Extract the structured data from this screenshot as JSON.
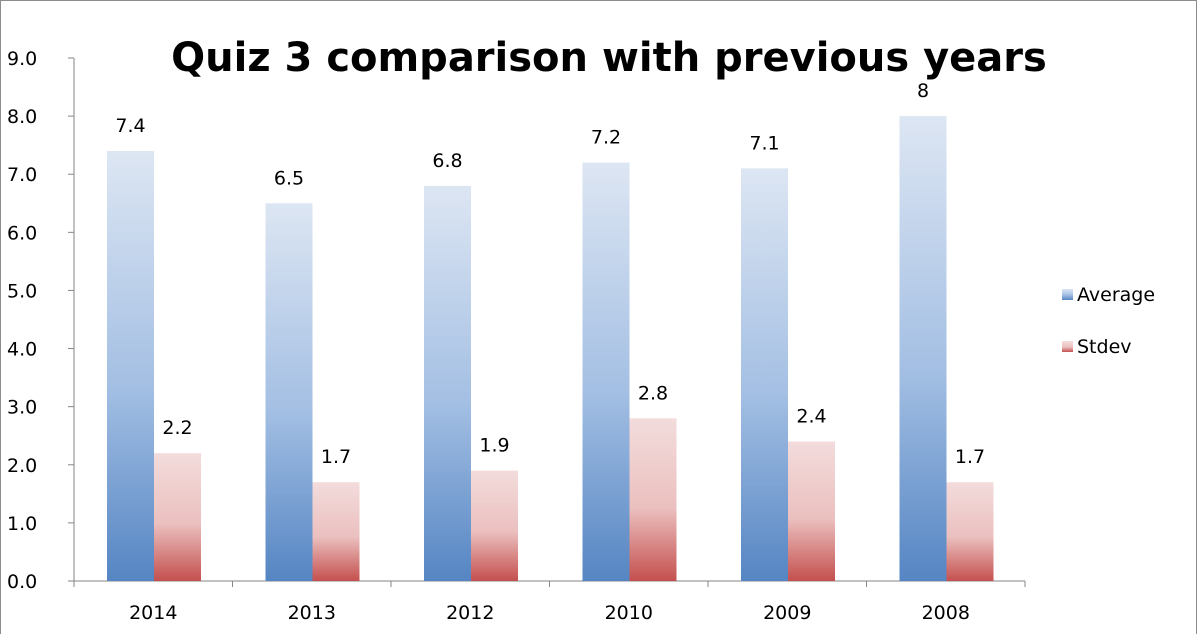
{
  "chart_data": {
    "type": "bar",
    "title": "Quiz 3 comparison with previous years",
    "xlabel": "",
    "ylabel": "",
    "categories": [
      "2014",
      "2013",
      "2012",
      "2010",
      "2009",
      "2008"
    ],
    "series": [
      {
        "name": "Average",
        "values": [
          7.4,
          6.5,
          6.8,
          7.2,
          7.1,
          8
        ],
        "labels": [
          "7.4",
          "6.5",
          "6.8",
          "7.2",
          "7.1",
          "8"
        ],
        "color": "#4f81bd"
      },
      {
        "name": "Stdev",
        "values": [
          2.2,
          1.7,
          1.9,
          2.8,
          2.4,
          1.7
        ],
        "labels": [
          "2.2",
          "1.7",
          "1.9",
          "2.8",
          "2.4",
          "1.7"
        ],
        "color": "#c0504d"
      }
    ],
    "ylim": [
      0,
      9
    ],
    "yticks": [
      "0.0",
      "1.0",
      "2.0",
      "3.0",
      "4.0",
      "5.0",
      "6.0",
      "7.0",
      "8.0",
      "9.0"
    ],
    "grid": false,
    "legend_position": "right"
  }
}
